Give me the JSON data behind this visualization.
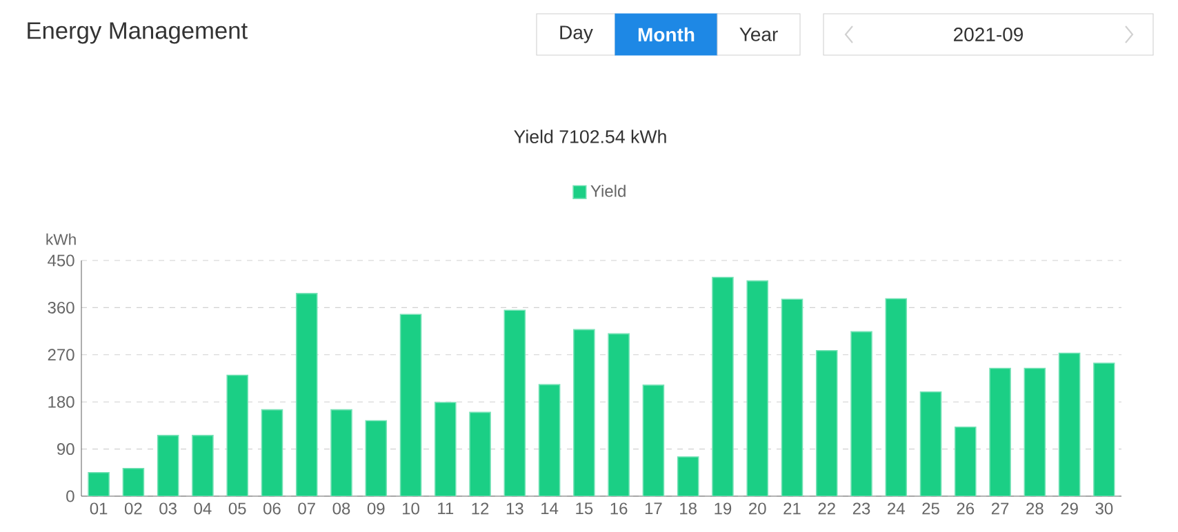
{
  "chart_data": {
    "type": "bar",
    "title": "Energy Management",
    "subtitle": "Yield 7102.54 kWh",
    "ylabel": "kWh",
    "annotations": [
      "Day",
      "Month",
      "Year",
      "2021-09"
    ],
    "categories": [
      "01",
      "02",
      "03",
      "04",
      "05",
      "06",
      "07",
      "08",
      "09",
      "10",
      "11",
      "12",
      "13",
      "14",
      "15",
      "16",
      "17",
      "18",
      "19",
      "20",
      "21",
      "22",
      "23",
      "24",
      "25",
      "26",
      "27",
      "28",
      "29",
      "30"
    ],
    "series": [
      {
        "name": "Yield",
        "color": "#1bcf85",
        "values": [
          45,
          53,
          116,
          116,
          231,
          165,
          387,
          165,
          144,
          347,
          179,
          160,
          355,
          213,
          318,
          310,
          212,
          75,
          418,
          411,
          376,
          278,
          314,
          377,
          199,
          132,
          244,
          244,
          273,
          254
        ]
      }
    ],
    "ylim": [
      0,
      450
    ],
    "yticks": [
      0,
      90,
      180,
      270,
      360,
      450
    ],
    "grid": "y",
    "legend": "top"
  }
}
